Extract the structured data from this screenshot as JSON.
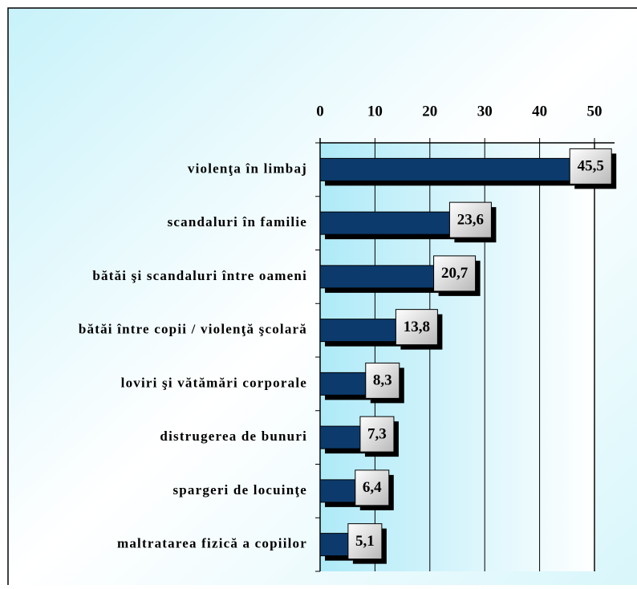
{
  "chart_data": {
    "type": "barh",
    "categories": [
      "violenţa în limbaj",
      "scandaluri în familie",
      "bătăi şi scandaluri între oameni",
      "bătăi între copii / violenţă şcolară",
      "loviri şi vătămări corporale",
      "distrugerea de bunuri",
      "spargeri de locuinţe",
      "maltratarea fizică a copiilor"
    ],
    "values": [
      45.5,
      23.6,
      20.7,
      13.8,
      8.3,
      7.3,
      6.4,
      5.1
    ],
    "value_labels": [
      "45,5",
      "23,6",
      "20,7",
      "13,8",
      "8,3",
      "7,3",
      "6,4",
      "5,1"
    ],
    "color": "#0c3a6c",
    "xlim": [
      0,
      50
    ],
    "xticks": [
      0,
      10,
      20,
      30,
      40,
      50
    ],
    "grid": true
  }
}
